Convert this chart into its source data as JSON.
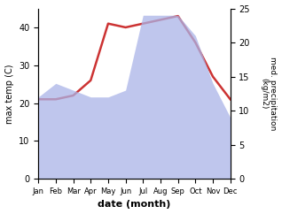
{
  "months": [
    "Jan",
    "Feb",
    "Mar",
    "Apr",
    "May",
    "Jun",
    "Jul",
    "Aug",
    "Sep",
    "Oct",
    "Nov",
    "Dec"
  ],
  "month_indices": [
    1,
    2,
    3,
    4,
    5,
    6,
    7,
    8,
    9,
    10,
    11,
    12
  ],
  "temp": [
    21,
    21,
    22,
    26,
    41,
    40,
    41,
    42,
    43,
    36,
    27,
    21
  ],
  "precip": [
    12,
    14,
    13,
    12,
    12,
    13,
    24,
    24,
    24,
    21,
    14,
    9
  ],
  "temp_ylim": [
    0,
    45
  ],
  "precip_ylim": [
    0,
    25
  ],
  "temp_yticks": [
    0,
    10,
    20,
    30,
    40
  ],
  "precip_yticks": [
    0,
    5,
    10,
    15,
    20,
    25
  ],
  "temp_color": "#cc3333",
  "precip_fill_color": "#aab4e8",
  "precip_fill_alpha": 0.75,
  "ylabel_left": "max temp (C)",
  "ylabel_right": "med. precipitation\n(kg/m2)",
  "xlabel": "date (month)",
  "figsize": [
    3.18,
    2.42
  ],
  "dpi": 100
}
